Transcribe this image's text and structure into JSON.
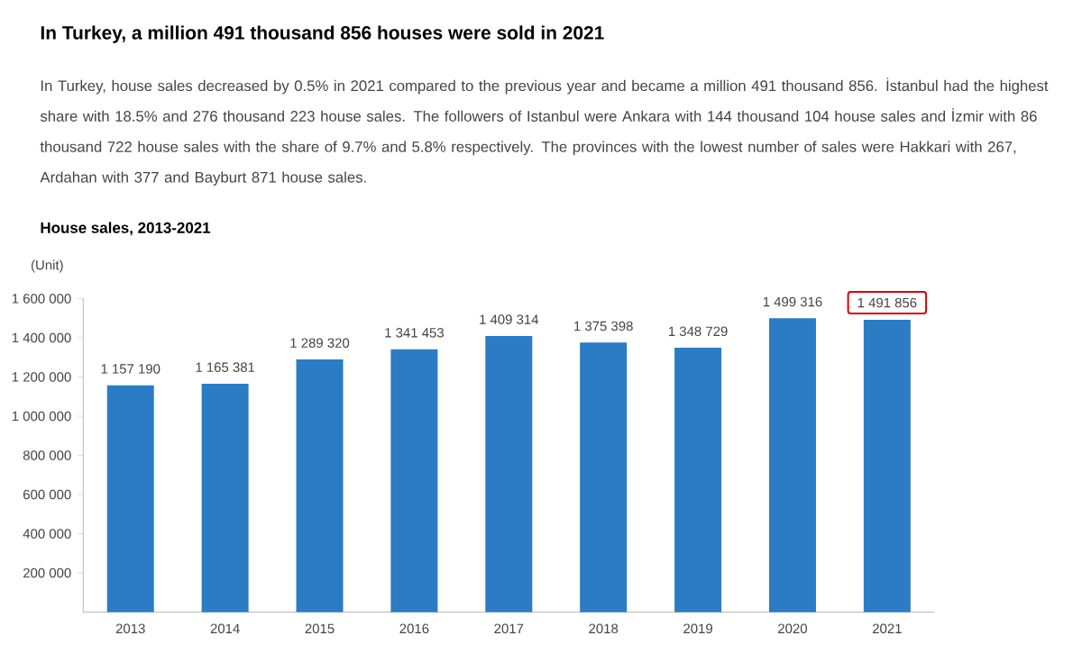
{
  "chart_data": {
    "type": "bar",
    "title": "In Turkey, a million 491 thousand 856 houses were sold in 2021",
    "subtitle": "In Turkey, house sales decreased by 0.5% in 2021 compared to the previous year and became a million 491 thousand 856. İstanbul had the highest share with 18.5% and 276 thousand 223 house sales. The followers of Istanbul were Ankara with 144 thousand 104 house sales and İzmir with 86 thousand 722 house sales with the share of 9.7% and 5.8% respectively. The provinces with the lowest number of sales were Hakkari with 267, Ardahan with 377 and Bayburt 871 house sales.",
    "annotations": [
      "House sales, 2013-2021",
      {
        "text": "1 491 856",
        "x": "2021",
        "y": 1491856
      }
    ],
    "ylabel": "(Unit)",
    "categories": [
      "2013",
      "2014",
      "2015",
      "2016",
      "2017",
      "2018",
      "2019",
      "2020",
      "2021"
    ],
    "values": [
      1157190,
      1165381,
      1289320,
      1341453,
      1409314,
      1375398,
      1348729,
      1499316,
      1491856
    ],
    "value_labels": [
      "1 157 190",
      "1 165 381",
      "1 289 320",
      "1 341 453",
      "1 409 314",
      "1 375 398",
      "1 348 729",
      "1 499 316",
      null
    ],
    "color": "#2b7cc4",
    "ylim": [
      0,
      1600000
    ],
    "yticks": [
      {
        "value": 200000,
        "label": "200 000"
      },
      {
        "value": 400000,
        "label": "400 000"
      },
      {
        "value": 600000,
        "label": "600 000"
      },
      {
        "value": 800000,
        "label": "800 000"
      },
      {
        "value": 1000000,
        "label": "1 000 000"
      },
      {
        "value": 1200000,
        "label": "1 200 000"
      },
      {
        "value": 1400000,
        "label": "1 400 000"
      },
      {
        "value": 1600000,
        "label": "1 600 000"
      }
    ]
  }
}
